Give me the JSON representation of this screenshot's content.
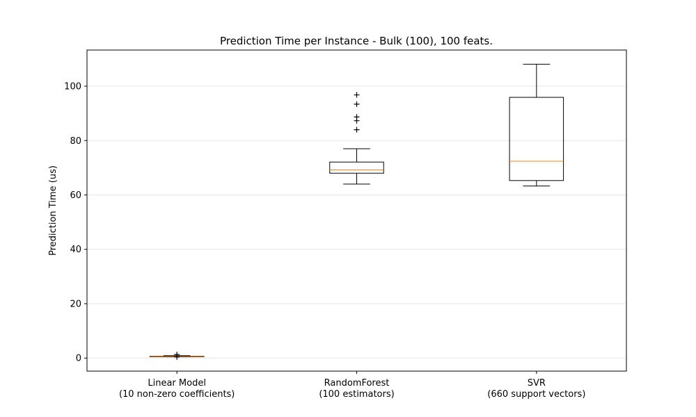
{
  "chart_data": {
    "type": "box",
    "title": "Prediction Time per Instance - Bulk (100), 100 feats.",
    "xlabel": "",
    "ylabel": "Prediction Time (us)",
    "ylim": [
      -4.8,
      113.3
    ],
    "yticks": [
      0,
      20,
      40,
      60,
      80,
      100
    ],
    "grid": "horizontal",
    "categories": [
      [
        "Linear Model",
        "(10 non-zero coefficients)"
      ],
      [
        "RandomForest",
        "(100 estimators)"
      ],
      [
        "SVR",
        "(660 support vectors)"
      ]
    ],
    "boxes": [
      {
        "whisker_low": 0.5,
        "q1": 0.55,
        "median": 0.6,
        "q3": 0.7,
        "whisker_high": 0.9,
        "fliers": [
          1.3,
          0.4
        ]
      },
      {
        "whisker_low": 64.0,
        "q1": 68.0,
        "median": 69.2,
        "q3": 72.1,
        "whisker_high": 77.0,
        "fliers": [
          84.0,
          87.3,
          88.7,
          93.4,
          96.8
        ]
      },
      {
        "whisker_low": 63.3,
        "q1": 65.3,
        "median": 72.4,
        "q3": 95.9,
        "whisker_high": 108.1,
        "fliers": []
      }
    ],
    "colors": {
      "box": "#000000",
      "median": "#ff7f0e",
      "grid": "#e6e6e6"
    }
  }
}
